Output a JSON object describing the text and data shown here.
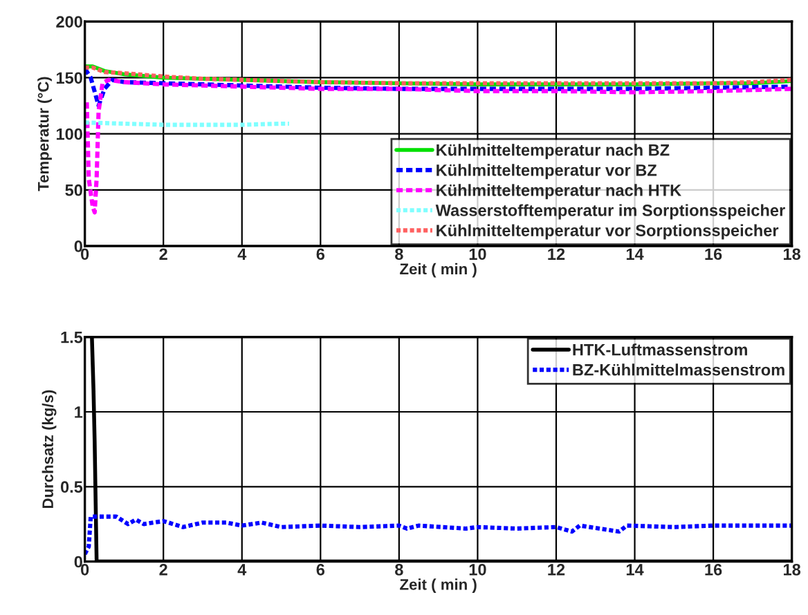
{
  "chart_data": [
    {
      "type": "line",
      "xlabel": "Zeit ( min )",
      "ylabel": "Temperatur (°C)",
      "xlim": [
        0,
        18
      ],
      "ylim": [
        0,
        200
      ],
      "xticks": [
        0,
        2,
        4,
        6,
        8,
        10,
        12,
        14,
        16,
        18
      ],
      "yticks": [
        0,
        50,
        100,
        150,
        200
      ],
      "grid": true,
      "legend": "right",
      "series": [
        {
          "name": "Kühlmitteltemperatur nach BZ",
          "color": "#00e000",
          "line_style": "solid",
          "x": [
            0,
            0.2,
            0.5,
            1,
            2,
            3,
            4,
            6,
            8,
            10,
            12,
            14,
            16,
            17,
            18
          ],
          "values": [
            160,
            160,
            156,
            153,
            150,
            149,
            148,
            146,
            145,
            144,
            144,
            144,
            145,
            145,
            147
          ]
        },
        {
          "name": "Kühlmitteltemperatur vor BZ",
          "color": "#0000ff",
          "line_style": "dashed",
          "x": [
            0,
            0.15,
            0.35,
            0.5,
            0.7,
            1,
            2,
            4,
            6,
            8,
            10,
            12,
            14,
            16,
            18
          ],
          "values": [
            158,
            150,
            125,
            140,
            148,
            146,
            145,
            143,
            141,
            140,
            140,
            140,
            140,
            141,
            142
          ]
        },
        {
          "name": "Kühlmitteltemperatur nach HTK",
          "color": "#ff00ff",
          "line_style": "dashed",
          "x": [
            0.05,
            0.1,
            0.2,
            0.25,
            0.3,
            0.35,
            0.45,
            0.6,
            1,
            2,
            4,
            6,
            8,
            10,
            12,
            14,
            16,
            18
          ],
          "values": [
            128,
            60,
            35,
            30,
            60,
            120,
            145,
            148,
            146,
            144,
            142,
            140,
            140,
            138,
            138,
            137,
            138,
            140
          ]
        },
        {
          "name": "Wasserstofftemperatur im Sorptionsspeicher",
          "color": "#80ffff",
          "line_style": "dotted",
          "x": [
            0,
            1,
            2,
            3,
            4,
            5,
            5.2
          ],
          "values": [
            110,
            109,
            108,
            108,
            108,
            109,
            109
          ]
        },
        {
          "name": "Kühlmitteltemperatur vor Sorptionsspeicher",
          "color": "#ff6060",
          "line_style": "dotted",
          "x": [
            0,
            0.2,
            0.5,
            1,
            2,
            3,
            4,
            6,
            8,
            10,
            12,
            14,
            16,
            17,
            18
          ],
          "values": [
            159,
            159,
            155,
            154,
            151,
            149,
            148,
            146,
            145,
            145,
            145,
            145,
            145,
            146,
            148
          ]
        }
      ]
    },
    {
      "type": "line",
      "xlabel": "Zeit ( min )",
      "ylabel": "Durchsatz (kg/s)",
      "xlim": [
        0,
        18
      ],
      "ylim": [
        0,
        1.5
      ],
      "xticks": [
        0,
        2,
        4,
        6,
        8,
        10,
        12,
        14,
        16,
        18
      ],
      "yticks": [
        0,
        0.5,
        1,
        1.5
      ],
      "grid": true,
      "legend": "top right",
      "series": [
        {
          "name": "HTK-Luftmassenstrom",
          "color": "#000000",
          "line_style": "solid",
          "x": [
            0.18,
            0.22,
            0.25,
            0.3,
            1,
            18
          ],
          "values": [
            1.5,
            1.15,
            0.8,
            0,
            0,
            0
          ]
        },
        {
          "name": "BZ-Kühlmittelmassenstrom",
          "color": "#0000ff",
          "line_style": "dotted",
          "x": [
            0,
            0.1,
            0.15,
            0.8,
            1.1,
            1.3,
            1.5,
            2,
            2.5,
            3,
            3.6,
            4,
            4.5,
            5,
            6,
            7,
            8,
            8.2,
            8.5,
            9.7,
            10,
            11,
            12,
            12.4,
            12.6,
            13.6,
            13.8,
            15,
            16,
            18
          ],
          "values": [
            0.05,
            0.1,
            0.3,
            0.3,
            0.25,
            0.28,
            0.25,
            0.27,
            0.23,
            0.26,
            0.26,
            0.24,
            0.26,
            0.23,
            0.24,
            0.23,
            0.24,
            0.22,
            0.24,
            0.22,
            0.23,
            0.22,
            0.23,
            0.2,
            0.24,
            0.2,
            0.24,
            0.23,
            0.24,
            0.24
          ]
        }
      ]
    }
  ]
}
